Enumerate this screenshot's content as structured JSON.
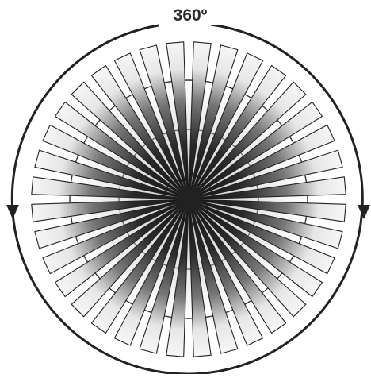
{
  "diagram": {
    "label": "360º",
    "ray_count": 36,
    "colors": {
      "stroke": "#222222",
      "ray_fill_light": "#f4f4f4",
      "ray_fill_dark": "#1e1e1e",
      "ring_fill": "#ffffff"
    }
  }
}
